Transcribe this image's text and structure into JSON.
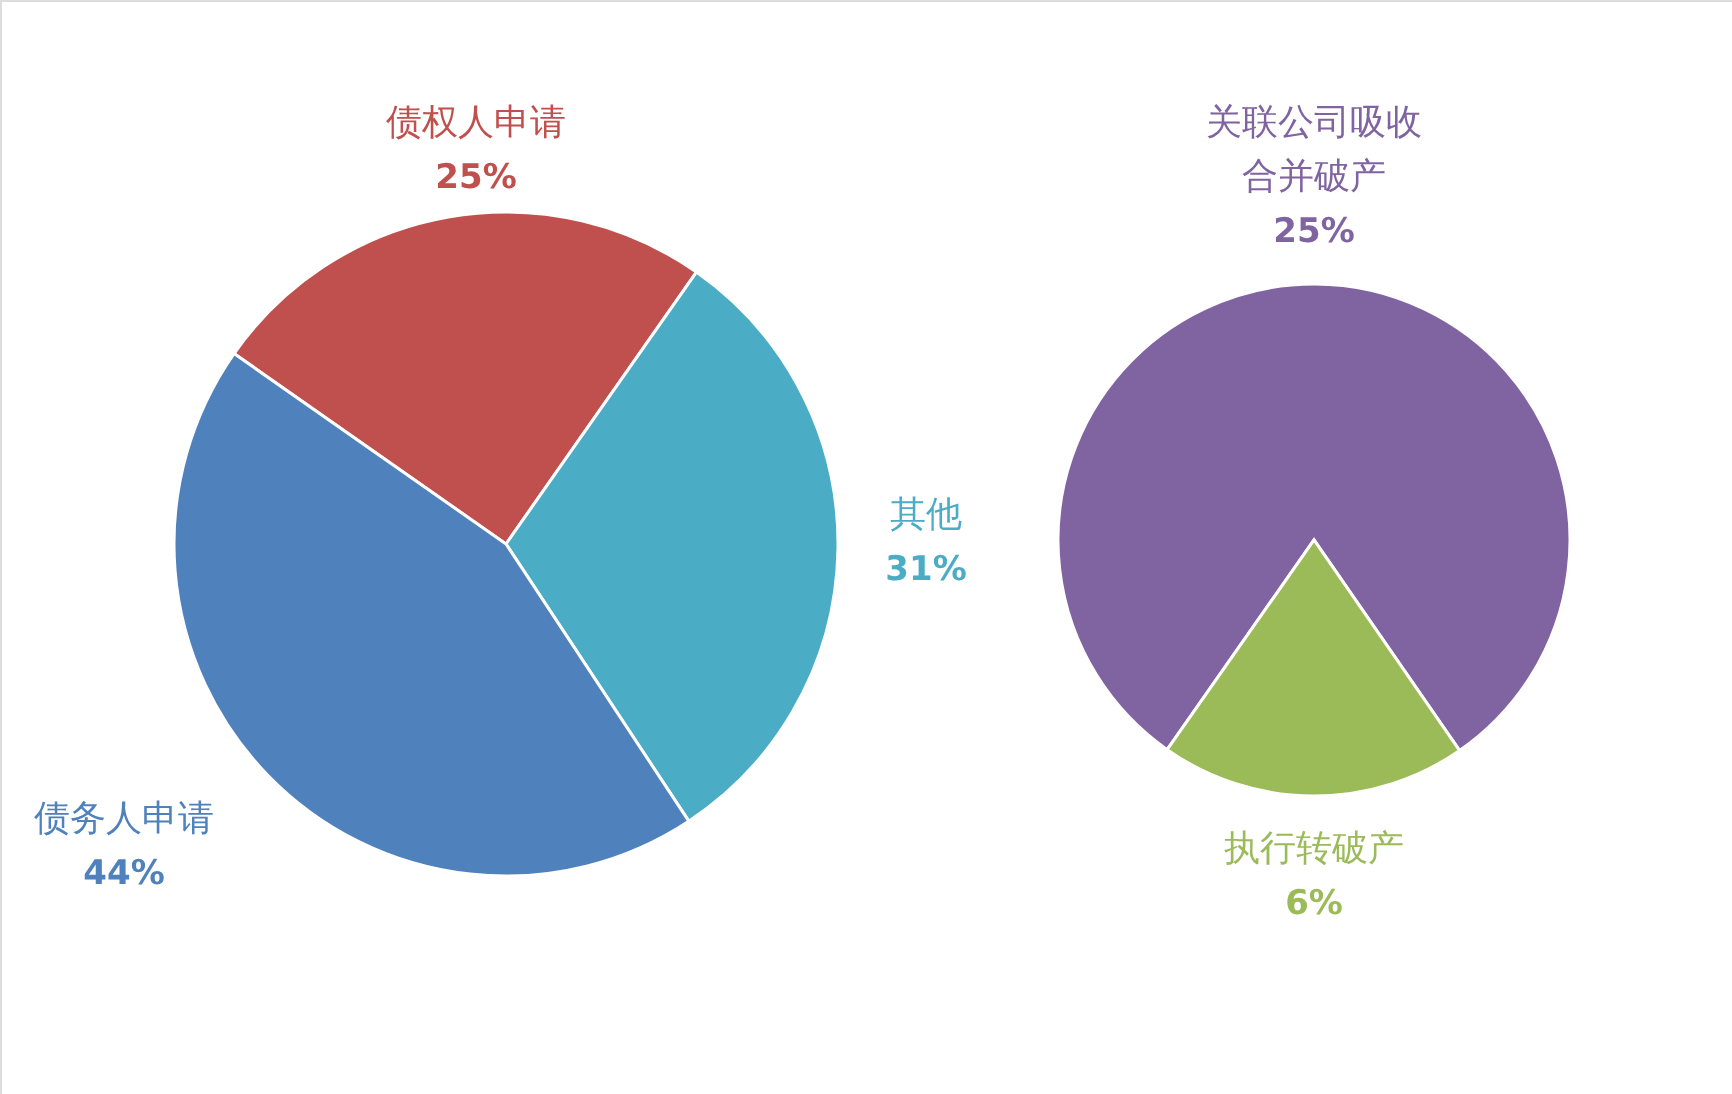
{
  "chart_data": [
    {
      "type": "pie",
      "categories": [
        "债权人申请",
        "其他",
        "债务人申请"
      ],
      "values": [
        25,
        31,
        44
      ],
      "colors": [
        "#c0504d",
        "#4bacc6",
        "#4f81bd"
      ],
      "value_labels": [
        "25%",
        "31%",
        "44%"
      ]
    },
    {
      "type": "pie",
      "categories": [
        "关联公司吸收合并破产",
        "执行转破产"
      ],
      "values": [
        25,
        6
      ],
      "colors": [
        "#8064a2",
        "#9bbb59"
      ],
      "value_labels": [
        "25%",
        "6%"
      ]
    }
  ]
}
